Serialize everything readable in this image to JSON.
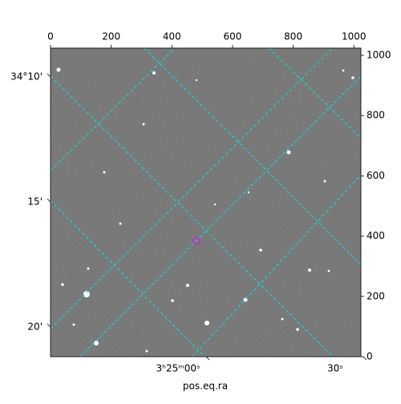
{
  "chart_data": {
    "type": "image",
    "xlabel": "pos.eq.ra",
    "xlim": [
      0,
      1023
    ],
    "ylim": [
      0,
      1024
    ],
    "xticks": [
      0,
      200,
      400,
      600,
      800,
      1000
    ],
    "yticks": [
      0,
      200,
      400,
      600,
      800,
      1000
    ],
    "ra_ticks": [
      {
        "value": 51.25,
        "label": "3ʰ25ᵐ00ˢ"
      },
      {
        "value": 51.375,
        "label": "30ˢ"
      }
    ],
    "dec_ticks": [
      {
        "value": 34.1667,
        "label": "34°10'"
      },
      {
        "value": 34.25,
        "label": "15'"
      },
      {
        "value": 34.3333,
        "label": "20'"
      }
    ]
  }
}
